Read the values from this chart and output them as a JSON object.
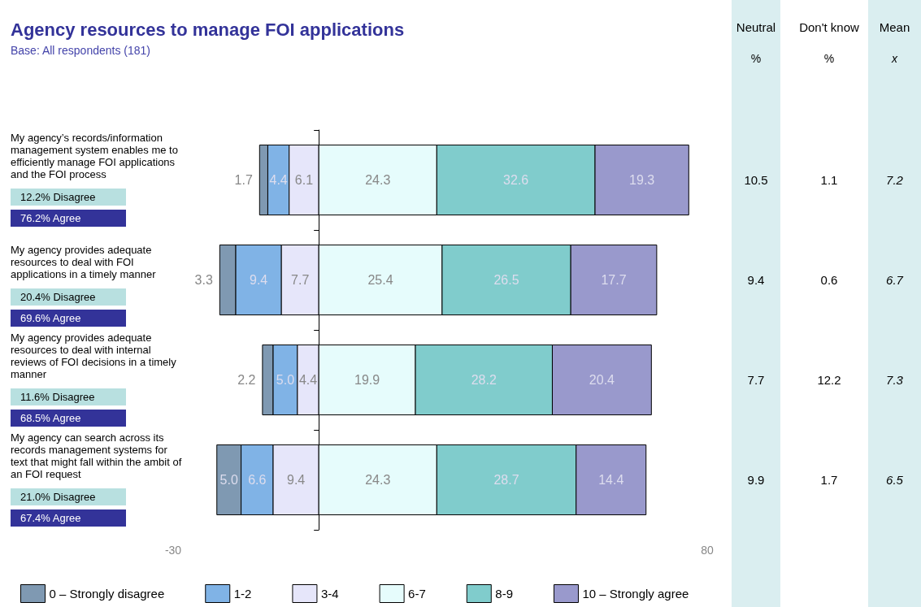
{
  "chart_data": {
    "type": "bar",
    "orientation": "horizontal",
    "title": "Agency resources to manage FOI applications",
    "subtitle": "Base: All respondents (181)",
    "categories": [
      "My agency’s records/information management system enables me to efficiently manage FOI applications and the FOI process",
      "My agency provides adequate resources to deal with FOI applications in a timely manner",
      "My agency provides adequate resources to deal with internal reviews of FOI decisions in a timely manner",
      "My agency can search across its records management systems for text that might fall within the ambit of an FOI request"
    ],
    "series": [
      {
        "name": "0 – Strongly disagree",
        "color": "#7f99b2",
        "values": [
          1.7,
          3.3,
          2.2,
          5.0
        ],
        "value_labels": [
          "1.7",
          "3.3",
          "2.2",
          "5.0"
        ],
        "base": [
          -12.2,
          -20.4,
          -11.6,
          -21.0
        ]
      },
      {
        "name": "1-2",
        "color": "#80b3e6",
        "values": [
          4.4,
          9.4,
          5.0,
          6.6
        ],
        "value_labels": [
          "4.4",
          "9.4",
          "5.0",
          "6.6"
        ],
        "base": [
          -10.5,
          -17.1,
          -9.4,
          -16.0
        ]
      },
      {
        "name": "3-4",
        "color": "#e6e6fa",
        "values": [
          6.1,
          7.7,
          4.4,
          9.4
        ],
        "value_labels": [
          "6.1",
          "7.7",
          "4.4",
          "9.4"
        ],
        "base": [
          -6.1,
          -7.7,
          -4.4,
          -9.4
        ]
      },
      {
        "name": "6-7",
        "color": "#e6fcfc",
        "values": [
          24.3,
          25.4,
          19.9,
          24.3
        ],
        "value_labels": [
          "24.3",
          "25.4",
          "19.9",
          "24.3"
        ],
        "base": [
          0,
          0,
          0,
          0
        ]
      },
      {
        "name": "8-9",
        "color": "#80cccc",
        "values": [
          32.6,
          26.5,
          28.2,
          28.7
        ],
        "value_labels": [
          "32.6",
          "26.5",
          "28.2",
          "28.7"
        ],
        "base": [
          24.3,
          25.4,
          19.9,
          24.3
        ]
      },
      {
        "name": "10 – Strongly agree",
        "color": "#9999cc",
        "values": [
          19.3,
          17.7,
          20.4,
          14.4
        ],
        "value_labels": [
          "19.3",
          "17.7",
          "20.4",
          "14.4"
        ],
        "base": [
          56.9,
          51.9,
          48.1,
          53.0
        ]
      }
    ],
    "xlim": [
      -30,
      80
    ],
    "xticks": [
      -30,
      80
    ],
    "grid": false,
    "legend": "bottom",
    "annotations": [
      "12.2% Disagree",
      "76.2% Agree",
      "20.4% Disagree",
      "69.6% Agree",
      "11.6% Disagree",
      "68.5% Agree",
      "21.0% Disagree",
      "67.4% Agree",
      "Neutral",
      "Don't know",
      "Mean",
      "%",
      "%",
      "x",
      "10.5",
      "1.1",
      "7.2",
      "9.4",
      "0.6",
      "6.7",
      "7.7",
      "12.2",
      "7.3",
      "9.9",
      "1.7",
      "6.5"
    ]
  }
}
